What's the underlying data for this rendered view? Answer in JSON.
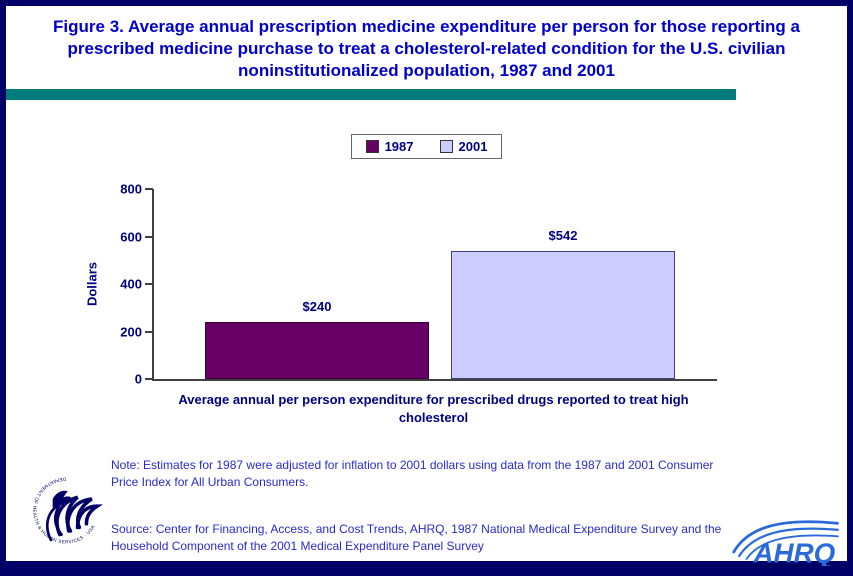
{
  "page": {
    "title": "Figure 3. Average annual prescription medicine expenditure per person for those reporting a prescribed medicine purchase to treat a cholesterol-related condition for the U.S. civilian noninstitutionalized population, 1987 and 2001",
    "note": "Note: Estimates for 1987 were adjusted for inflation to 2001 dollars using data from the 1987 and 2001 Consumer Price Index for All Urban Consumers.",
    "source": "Source: Center for Financing, Access, and Cost Trends, AHRQ, 1987 National Medical Expenditure Survey and the Household Component of the 2001 Medical Expenditure Panel Survey"
  },
  "legend": {
    "items": [
      {
        "label": "1987",
        "color": "#660066"
      },
      {
        "label": "2001",
        "color": "#CCCCFF"
      }
    ]
  },
  "chart_data": {
    "type": "bar",
    "categories": [
      "1987",
      "2001"
    ],
    "values": [
      240,
      542
    ],
    "value_labels": [
      "$240",
      "$542"
    ],
    "colors": [
      "#660066",
      "#CCCCFF"
    ],
    "bar_border_colors": [
      "#3A003A",
      "#404080"
    ],
    "title": "",
    "xlabel": "Average annual per person expenditure for prescribed drugs reported to treat high cholesterol",
    "ylabel": "Dollars",
    "ylim": [
      0,
      800
    ],
    "yticks": [
      0,
      200,
      400,
      600,
      800
    ],
    "grid": false,
    "legend_position": "top-center"
  },
  "logos": {
    "ahrq_text": "AHRQ",
    "hhs_seal_text": "DEPARTMENT OF HEALTH & HUMAN SERVICES · USA"
  },
  "colors": {
    "border_navy": "#000066",
    "divider_teal": "#007C7C",
    "title_blue": "#0000CC",
    "chart_navy": "#000080",
    "ahrq_blue": "#2B6BD9"
  }
}
